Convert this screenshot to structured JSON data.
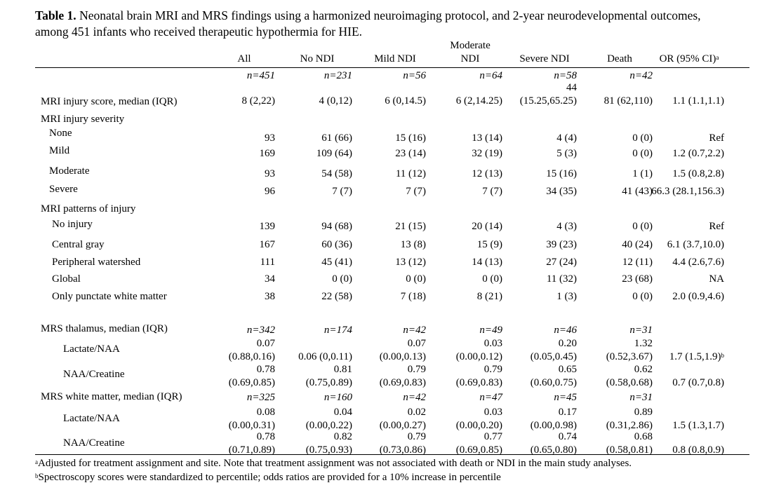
{
  "title": {
    "label": "Table 1.",
    "text": "Neonatal brain MRI and MRS findings using a harmonized neuroimaging protocol, and 2-year neurodevelopmental outcomes, among 451 infants who received therapeutic hypothermia for HIE."
  },
  "columns": [
    "All",
    "No NDI",
    "Mild NDI",
    "Moderate NDI",
    "Severe NDI",
    "Death",
    "OR (95% CI)"
  ],
  "column_note": "a",
  "sample_sizes": [
    "n=451",
    "n=231",
    "n=56",
    "n=64",
    "n=58",
    "n=42"
  ],
  "rows": [
    {
      "label": "MRI injury score, median (IQR)",
      "cells": [
        "8 (2,22)",
        "4 (0,12)",
        "6 (0,14.5)",
        "6 (2,14.25)",
        "44\n(15.25,65.25)",
        "81 (62,110)",
        "1.1 (1.1,1.1)"
      ]
    },
    {
      "label": "MRI injury severity"
    },
    {
      "label": "None",
      "cells": [
        "93",
        "61 (66)",
        "15 (16)",
        "13 (14)",
        "4 (4)",
        "0 (0)",
        "Ref"
      ]
    },
    {
      "label": "Mild",
      "cells": [
        "169",
        "109 (64)",
        "23 (14)",
        "32 (19)",
        "5 (3)",
        "0 (0)",
        "1.2 (0.7,2.2)"
      ]
    },
    {
      "label": "Moderate",
      "cells": [
        "93",
        "54 (58)",
        "11 (12)",
        "12 (13)",
        "15 (16)",
        "1 (1)",
        "1.5 (0.8,2.8)"
      ]
    },
    {
      "label": "Severe",
      "cells": [
        "96",
        "7 (7)",
        "7 (7)",
        "7 (7)",
        "34 (35)",
        "41 (43)",
        "66.3 (28.1,156.3)"
      ]
    },
    {
      "label": "MRI patterns of injury"
    },
    {
      "label": "No injury",
      "cells": [
        "139",
        "94 (68)",
        "21 (15)",
        "20 (14)",
        "4 (3)",
        "0 (0)",
        "Ref"
      ]
    },
    {
      "label": "Central gray",
      "cells": [
        "167",
        "60 (36)",
        "13 (8)",
        "15 (9)",
        "39 (23)",
        "40 (24)",
        "6.1 (3.7,10.0)"
      ]
    },
    {
      "label": "Peripheral watershed",
      "cells": [
        "111",
        "45 (41)",
        "13 (12)",
        "14 (13)",
        "27 (24)",
        "12 (11)",
        "4.4 (2.6,7.6)"
      ]
    },
    {
      "label": "Global",
      "cells": [
        "34",
        "0 (0)",
        "0 (0)",
        "0 (0)",
        "11 (32)",
        "23 (68)",
        "NA"
      ]
    },
    {
      "label": "Only punctate white matter",
      "cells": [
        "38",
        "22 (58)",
        "7 (18)",
        "8 (21)",
        "1 (3)",
        "0 (0)",
        "2.0 (0.9,4.6)"
      ]
    },
    {
      "label": "MRS thalamus, median (IQR)",
      "cells": [
        "n=342",
        "n=174",
        "n=42",
        "n=49",
        "n=46",
        "n=31"
      ]
    },
    {
      "label": "Lactate/NAA",
      "cells": [
        "0.07\n(0.88,0.16)",
        "0.06 (0,0.11)",
        "0.07\n(0.00,0.13)",
        "0.03\n(0.00,0.12)",
        "0.20\n(0.05,0.45)",
        "1.32\n(0.52,3.67)",
        "1.7 (1.5,1.9)"
      ],
      "note": "b"
    },
    {
      "label": "NAA/Creatine",
      "cells": [
        "0.78\n(0.69,0.85)",
        "0.81\n(0.75,0.89)",
        "0.79\n(0.69,0.83)",
        "0.79\n(0.69,0.83)",
        "0.65\n(0.60,0.75)",
        "0.62\n(0.58,0.68)",
        "0.7 (0.7,0.8)"
      ]
    },
    {
      "label": "MRS white matter, median (IQR)",
      "cells": [
        "n=325",
        "n=160",
        "n=42",
        "n=47",
        "n=45",
        "n=31"
      ]
    },
    {
      "label": "Lactate/NAA",
      "cells": [
        "0.08\n(0.00,0.31)",
        "0.04\n(0.00,0.22)",
        "0.02\n(0.00,0.27)",
        "0.03\n(0.00,0.20)",
        "0.17\n(0.00,0.98)",
        "0.89\n(0.31,2.86)",
        "1.5 (1.3,1.7)"
      ]
    },
    {
      "label": "NAA/Creatine",
      "cells": [
        "0.78\n(0.71,0.89)",
        "0.82\n(0.75,0.93)",
        "0.79\n(0.73,0.86)",
        "0.77\n(0.69,0.85)",
        "0.74\n(0.65,0.80)",
        "0.68\n(0.58,0.81)",
        "0.8 (0.8,0.9)"
      ]
    }
  ],
  "footnotes": [
    {
      "mark": "a",
      "text": "Adjusted for treatment assignment and site. Note that treatment assignment was not associated with death or NDI in the main study analyses."
    },
    {
      "mark": "b",
      "text": "Spectroscopy scores were standardized to percentile; odds ratios are provided for a 10% increase in percentile"
    }
  ]
}
